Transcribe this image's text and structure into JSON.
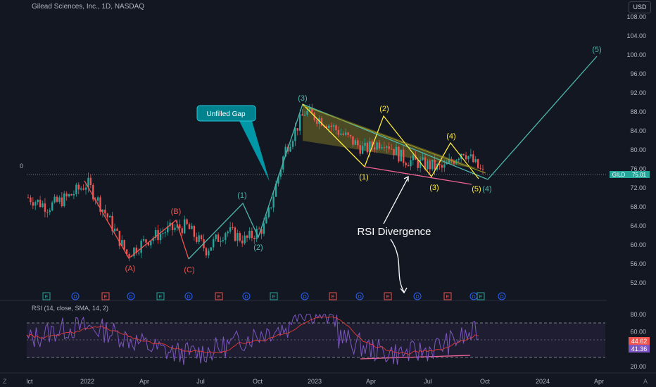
{
  "header": {
    "symbol_title": "Gilead Sciences, Inc., 1D, NASDAQ",
    "currency": "USD",
    "zero_label": "0"
  },
  "corner": {
    "left": "Z",
    "right": "A"
  },
  "price_axis": {
    "ticks": [
      "108.00",
      "104.00",
      "100.00",
      "96.00",
      "92.00",
      "88.00",
      "84.00",
      "80.00",
      "76.00",
      "72.00",
      "68.00",
      "64.00",
      "60.00",
      "56.00",
      "52.00"
    ],
    "last_price": "75.01",
    "ticker": "GILD",
    "range": [
      50,
      110
    ]
  },
  "time_axis": {
    "ticks": [
      "lct",
      "2022",
      "Apr",
      "Jul",
      "Oct",
      "2023",
      "Apr",
      "Jul",
      "Oct",
      "2024",
      "Apr"
    ]
  },
  "annotations": {
    "unfilled_gap": "Unfilled Gap",
    "rsi_divergence": "RSI Divergence",
    "wave_labels": [
      "(A)",
      "(B)",
      "(C)",
      "(1)",
      "(2)",
      "(3)",
      "(4)",
      "(5)"
    ],
    "triangle_labels": [
      "(1)",
      "(2)",
      "(3)",
      "(4)",
      "(5)"
    ]
  },
  "events": [
    "E",
    "D",
    "E",
    "D",
    "E",
    "D",
    "E",
    "D",
    "E",
    "D",
    "E",
    "D",
    "E",
    "D",
    "E",
    "D",
    "E",
    "D",
    "E"
  ],
  "rsi": {
    "title": "RSI (14, close, SMA, 14, 2)",
    "ticks": [
      "80.00",
      "60.00",
      "40.00",
      "20.00"
    ],
    "value_1": "44.62",
    "value_2": "41.36",
    "range": [
      15,
      85
    ]
  },
  "chart_data": {
    "type": "line",
    "title": "Gilead Sciences, Inc., 1D, NASDAQ",
    "xlabel": "",
    "ylabel": "",
    "ylim": [
      50,
      110
    ],
    "series": [
      {
        "name": "GILD",
        "x": [
          "2021-10",
          "2021-11",
          "2021-12",
          "2022-01",
          "2022-02",
          "2022-03",
          "2022-04",
          "2022-05",
          "2022-06",
          "2022-07",
          "2022-08",
          "2022-09",
          "2022-10",
          "2022-11",
          "2022-12",
          "2023-01",
          "2023-02",
          "2023-03",
          "2023-04",
          "2023-05",
          "2023-06",
          "2023-07",
          "2023-08",
          "2023-09"
        ],
        "values": [
          70,
          68,
          70,
          73,
          66,
          58,
          61,
          63,
          64,
          59,
          63,
          61,
          64,
          80,
          88,
          86,
          83,
          80,
          82,
          78,
          77,
          76,
          80,
          75
        ]
      }
    ],
    "elliott_wave_path": [
      {
        "label": "(A)",
        "date": "2022-03",
        "value": 57.5
      },
      {
        "label": "(B)",
        "date": "2022-06",
        "value": 65
      },
      {
        "label": "(C)",
        "date": "2022-06",
        "value": 57
      },
      {
        "label": "(1)",
        "date": "2022-09",
        "value": 69
      },
      {
        "label": "(2)",
        "date": "2022-10",
        "value": 61.5
      },
      {
        "label": "(3)",
        "date": "2022-12",
        "value": 89.5
      },
      {
        "label": "(4)",
        "date": "2023-10",
        "value": 74
      },
      {
        "label": "(5)",
        "date": "2024-04",
        "value": 100
      }
    ],
    "rsi_series": {
      "name": "RSI (14, close, SMA, 14, 2)",
      "last_rsi": 41.36,
      "last_sma": 44.62,
      "bands": [
        70,
        50,
        30
      ]
    }
  }
}
